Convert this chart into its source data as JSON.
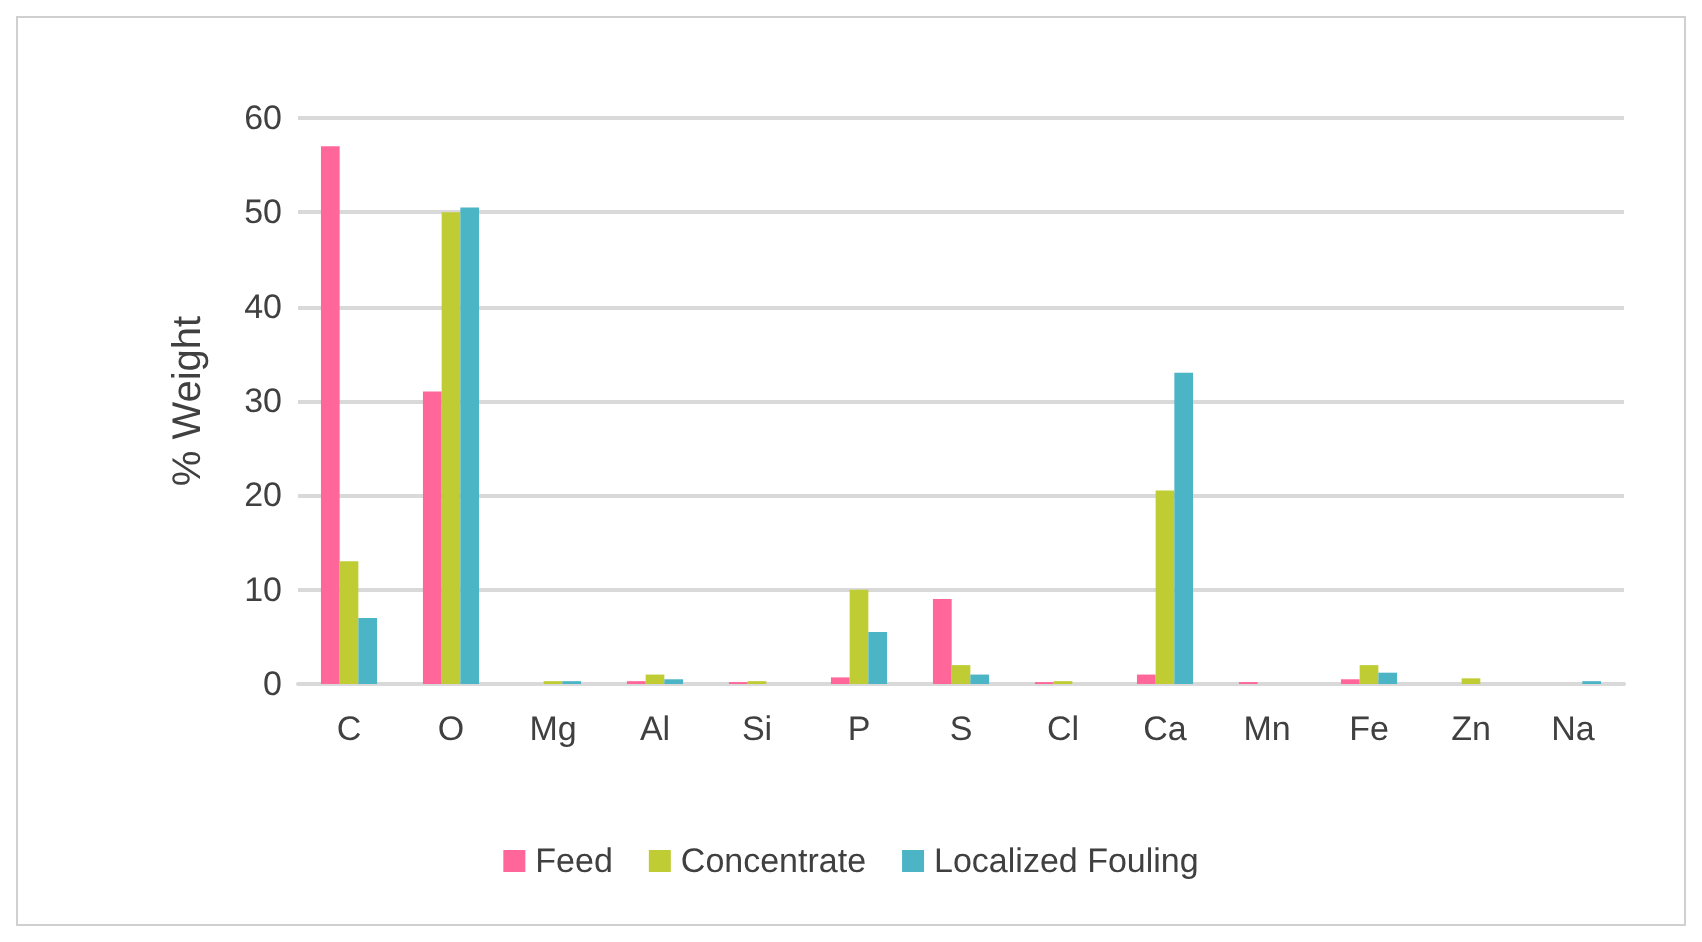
{
  "chart_data": {
    "type": "bar",
    "ylabel": "% Weight",
    "categories": [
      "C",
      "O",
      "Mg",
      "Al",
      "Si",
      "P",
      "S",
      "Cl",
      "Ca",
      "Mn",
      "Fe",
      "Zn",
      "Na"
    ],
    "series": [
      {
        "name": "Feed",
        "color": "#ff6699",
        "values": [
          57,
          31,
          null,
          0.3,
          0.2,
          0.7,
          9,
          0.2,
          1,
          0.2,
          0.5,
          null,
          null
        ]
      },
      {
        "name": "Concentrate",
        "color": "#bfcc33",
        "values": [
          13,
          50,
          0.3,
          1,
          0.3,
          10,
          2,
          0.3,
          20.5,
          null,
          2,
          0.6,
          null
        ]
      },
      {
        "name": "Localized Fouling",
        "color": "#4bb4c5",
        "values": [
          7,
          50.5,
          0.3,
          0.5,
          null,
          5.5,
          1,
          null,
          33,
          null,
          1.2,
          null,
          0.3
        ]
      }
    ],
    "ylim": [
      0,
      60
    ],
    "yticks": [
      0,
      10,
      20,
      30,
      40,
      50,
      60
    ],
    "grid": "y",
    "legend": "bottom"
  }
}
